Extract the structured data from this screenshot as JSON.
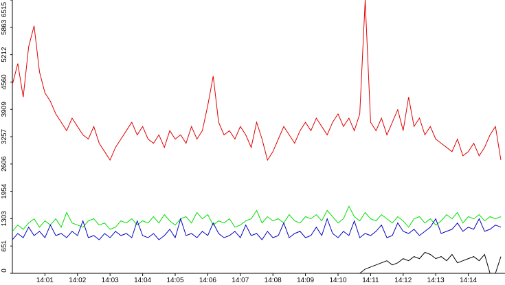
{
  "chart_data": {
    "type": "line",
    "categories": [
      null,
      null,
      null,
      null,
      null,
      null,
      "14:01",
      null,
      null,
      null,
      null,
      null,
      "14:02",
      null,
      null,
      null,
      null,
      null,
      "14:03",
      null,
      null,
      null,
      null,
      null,
      "14:04",
      null,
      null,
      null,
      null,
      null,
      "14:05",
      null,
      null,
      null,
      null,
      null,
      "14:06",
      null,
      null,
      null,
      null,
      null,
      "14:07",
      null,
      null,
      null,
      null,
      null,
      "14:08",
      null,
      null,
      null,
      null,
      null,
      "14:09",
      null,
      null,
      null,
      null,
      null,
      "14:10",
      null,
      null,
      null,
      null,
      null,
      "14:11",
      null,
      null,
      null,
      null,
      null,
      "14:12",
      null,
      null,
      null,
      null,
      null,
      "14:13",
      null,
      null,
      null,
      null,
      null,
      "14:14",
      null,
      null,
      null,
      null,
      null,
      null
    ],
    "series": [
      {
        "color": "#e00000",
        "values": [
          4500,
          5000,
          4200,
          5400,
          5900,
          4800,
          4300,
          4100,
          3800,
          3600,
          3400,
          3700,
          3500,
          3300,
          3200,
          3500,
          3100,
          2900,
          2700,
          3000,
          3200,
          3400,
          3600,
          3300,
          3500,
          3200,
          3100,
          3300,
          3000,
          3400,
          3200,
          3300,
          3100,
          3500,
          3200,
          3400,
          4000,
          4700,
          3600,
          3300,
          3400,
          3200,
          3500,
          3300,
          3000,
          3600,
          3200,
          2700,
          2900,
          3200,
          3500,
          3300,
          3100,
          3400,
          3600,
          3400,
          3700,
          3500,
          3300,
          3600,
          3800,
          3500,
          3700,
          3400,
          3800,
          6515,
          3600,
          3400,
          3700,
          3300,
          3600,
          3900,
          3400,
          4200,
          3500,
          3700,
          3300,
          3500,
          3200,
          3100,
          3000,
          2900,
          3200,
          2800,
          2900,
          3100,
          2800,
          3000,
          3300,
          3500,
          2700
        ]
      },
      {
        "color": "#00e000",
        "values": [
          1000,
          1150,
          1050,
          1200,
          1300,
          1100,
          1250,
          1150,
          1300,
          1100,
          1450,
          1200,
          1150,
          1100,
          1250,
          1300,
          1150,
          1200,
          1050,
          1100,
          1250,
          1200,
          1300,
          1150,
          1250,
          1200,
          1350,
          1200,
          1400,
          1250,
          1150,
          1300,
          1350,
          1200,
          1450,
          1300,
          1400,
          1150,
          1250,
          1200,
          1300,
          1100,
          1150,
          1250,
          1300,
          1500,
          1200,
          1350,
          1250,
          1300,
          1200,
          1400,
          1250,
          1200,
          1350,
          1300,
          1400,
          1250,
          1500,
          1350,
          1200,
          1300,
          1600,
          1350,
          1250,
          1450,
          1300,
          1250,
          1400,
          1300,
          1200,
          1350,
          1250,
          1100,
          1300,
          1350,
          1200,
          1300,
          1150,
          1250,
          1400,
          1300,
          1450,
          1200,
          1350,
          1300,
          1400,
          1250,
          1350,
          1300,
          1350
        ]
      },
      {
        "color": "#0000c0",
        "values": [
          800,
          950,
          850,
          1100,
          900,
          1000,
          850,
          1150,
          900,
          950,
          850,
          1000,
          900,
          1250,
          850,
          900,
          800,
          950,
          850,
          1000,
          900,
          950,
          850,
          1250,
          900,
          850,
          950,
          800,
          900,
          1050,
          850,
          1300,
          900,
          950,
          850,
          1000,
          900,
          1200,
          950,
          850,
          900,
          1000,
          850,
          1150,
          900,
          950,
          800,
          1000,
          850,
          900,
          1200,
          850,
          950,
          1000,
          850,
          900,
          1100,
          900,
          1300,
          950,
          850,
          1000,
          900,
          1250,
          850,
          950,
          900,
          1000,
          1150,
          850,
          900,
          1200,
          1000,
          950,
          1050,
          900,
          1000,
          1100,
          1300,
          950,
          1000,
          1050,
          1200,
          1000,
          1100,
          1050,
          1300,
          1000,
          1050,
          1150,
          1100
        ]
      },
      {
        "color": "#000000",
        "values": [
          0,
          0,
          0,
          0,
          0,
          0,
          0,
          0,
          0,
          0,
          0,
          0,
          0,
          0,
          0,
          0,
          0,
          0,
          0,
          0,
          0,
          0,
          0,
          0,
          0,
          0,
          0,
          0,
          0,
          0,
          0,
          0,
          0,
          0,
          0,
          0,
          0,
          0,
          0,
          0,
          0,
          0,
          0,
          0,
          0,
          0,
          0,
          0,
          0,
          0,
          0,
          0,
          0,
          0,
          0,
          0,
          0,
          0,
          0,
          0,
          0,
          0,
          0,
          0,
          0,
          100,
          150,
          200,
          250,
          300,
          200,
          250,
          350,
          300,
          400,
          350,
          500,
          450,
          350,
          400,
          300,
          450,
          250,
          300,
          350,
          400,
          300,
          450,
          0,
          0,
          400
        ]
      }
    ],
    "ylim": [
      0,
      6515
    ],
    "yticks": [
      0,
      651,
      1303,
      1954,
      2606,
      3257,
      3909,
      4560,
      5212,
      5863,
      6515
    ]
  }
}
